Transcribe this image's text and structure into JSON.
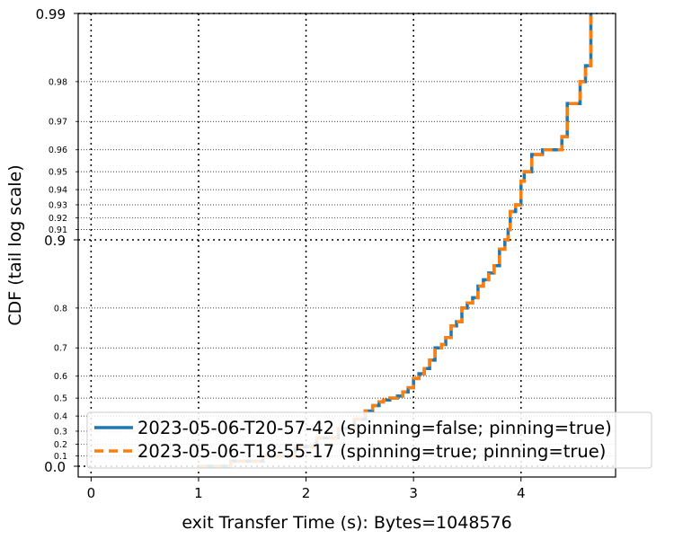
{
  "chart_data": {
    "type": "line",
    "xlabel": "exit Transfer Time (s): Bytes=1048576",
    "ylabel": "CDF (tail log scale)",
    "xlim": [
      -0.12,
      4.88
    ],
    "y_scale": "tail-log",
    "ylim": [
      0.0,
      0.99
    ],
    "x_ticks": [
      "0",
      "1",
      "2",
      "3",
      "4"
    ],
    "y_major_ticks": [
      "0.0",
      "0.9",
      "0.99"
    ],
    "y_minor_ticks": [
      "0.1",
      "0.2",
      "0.3",
      "0.4",
      "0.5",
      "0.6",
      "0.7",
      "0.8",
      "0.91",
      "0.92",
      "0.93",
      "0.94",
      "0.95",
      "0.96",
      "0.97",
      "0.98"
    ],
    "grid": true,
    "legend_placement": "bottom-right",
    "colors": {
      "series_1": "#1f77b4",
      "series_2": "#ff7f0e"
    },
    "series": [
      {
        "name": "2023-05-06-T20-57-42 (spinning=false; pinning=true)",
        "style": "solid",
        "x": [
          1.0,
          1.3,
          1.6,
          1.9,
          2.1,
          2.3,
          2.45,
          2.55,
          2.62,
          2.68,
          2.72,
          2.78,
          2.85,
          2.9,
          2.95,
          3.0,
          3.05,
          3.1,
          3.15,
          3.2,
          3.26,
          3.3,
          3.35,
          3.4,
          3.45,
          3.5,
          3.55,
          3.6,
          3.65,
          3.7,
          3.75,
          3.8,
          3.85,
          3.88,
          3.9,
          3.95,
          4.0,
          4.03,
          4.1,
          4.2,
          4.38,
          4.43,
          4.55,
          4.6,
          4.65
        ],
        "y": [
          0.0,
          0.05,
          0.1,
          0.18,
          0.25,
          0.32,
          0.38,
          0.43,
          0.46,
          0.48,
          0.49,
          0.5,
          0.51,
          0.53,
          0.55,
          0.59,
          0.61,
          0.63,
          0.66,
          0.7,
          0.71,
          0.73,
          0.76,
          0.77,
          0.8,
          0.81,
          0.82,
          0.84,
          0.85,
          0.86,
          0.87,
          0.89,
          0.9,
          0.91,
          0.925,
          0.93,
          0.945,
          0.95,
          0.958,
          0.96,
          0.965,
          0.975,
          0.98,
          0.983,
          0.99
        ]
      },
      {
        "name": "2023-05-06-T18-55-17 (spinning=true; pinning=true)",
        "style": "dashed",
        "x": [
          1.0,
          1.3,
          1.6,
          1.9,
          2.1,
          2.3,
          2.45,
          2.55,
          2.62,
          2.68,
          2.72,
          2.78,
          2.85,
          2.9,
          2.95,
          3.0,
          3.05,
          3.1,
          3.15,
          3.2,
          3.26,
          3.3,
          3.35,
          3.4,
          3.45,
          3.5,
          3.55,
          3.6,
          3.65,
          3.7,
          3.75,
          3.8,
          3.85,
          3.88,
          3.9,
          3.95,
          4.0,
          4.03,
          4.1,
          4.2,
          4.38,
          4.43,
          4.55,
          4.6,
          4.65
        ],
        "y": [
          0.0,
          0.05,
          0.1,
          0.18,
          0.25,
          0.32,
          0.38,
          0.43,
          0.46,
          0.48,
          0.49,
          0.5,
          0.51,
          0.53,
          0.55,
          0.59,
          0.61,
          0.63,
          0.66,
          0.7,
          0.71,
          0.73,
          0.76,
          0.77,
          0.8,
          0.81,
          0.82,
          0.84,
          0.85,
          0.86,
          0.87,
          0.89,
          0.9,
          0.91,
          0.925,
          0.93,
          0.945,
          0.95,
          0.958,
          0.96,
          0.965,
          0.975,
          0.98,
          0.983,
          0.99
        ]
      }
    ]
  }
}
